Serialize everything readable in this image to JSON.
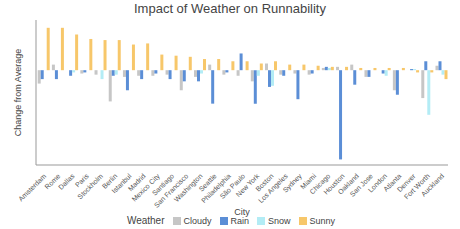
{
  "chart_data": {
    "type": "bar",
    "title": "Impact of Weather on Runnability",
    "x_label": "City",
    "y_label": "Change from Average",
    "legend_title": "Weather",
    "categories": [
      "Amsterdam",
      "Rome",
      "Dallas",
      "Paris",
      "Stockholm",
      "Berlin",
      "Istanbul",
      "Madrid",
      "Mexico City",
      "Santiago",
      "San Francisco",
      "Washington",
      "Seattle",
      "Philadelphia",
      "São Paulo",
      "New York",
      "Boston",
      "Los Angeles",
      "Sydney",
      "Miami",
      "Chicago",
      "Houston",
      "Oakland",
      "San Jose",
      "London",
      "Atlanta",
      "Denver",
      "Fort Worth",
      "Auckland"
    ],
    "series": [
      {
        "name": "Cloudy",
        "color": "#c6c6c6",
        "values": [
          -12,
          5,
          0,
          -3,
          -4,
          -28,
          -6,
          -5,
          -5,
          -4,
          -18,
          -6,
          5,
          -4,
          -5,
          -10,
          6,
          -4,
          -3,
          -4,
          2,
          3,
          5,
          -6,
          0,
          -18,
          0,
          -25,
          4
        ]
      },
      {
        "name": "Rain",
        "color": "#5b8ed6",
        "values": [
          -8,
          -8,
          -5,
          -2,
          0,
          -5,
          -18,
          -8,
          -3,
          -8,
          -10,
          -10,
          -30,
          -2,
          15,
          -30,
          -15,
          -5,
          -26,
          -3,
          3,
          -80,
          -13,
          -6,
          -3,
          -22,
          1,
          8,
          8
        ]
      },
      {
        "name": "Snow",
        "color": "#b3ecf5",
        "values": [
          0,
          0,
          -2,
          0,
          -8,
          -4,
          0,
          0,
          0,
          0,
          0,
          -3,
          0,
          0,
          0,
          -5,
          -14,
          0,
          0,
          0,
          2,
          0,
          0,
          0,
          -5,
          0,
          1,
          -40,
          -4
        ]
      },
      {
        "name": "Sunny",
        "color": "#f7c76a",
        "values": [
          38,
          38,
          32,
          28,
          27,
          27,
          23,
          24,
          14,
          13,
          12,
          10,
          10,
          8,
          8,
          6,
          8,
          5,
          5,
          4,
          3,
          3,
          2,
          2,
          2,
          2,
          -2,
          -2,
          -8
        ]
      }
    ],
    "ylim": [
      -85,
      45
    ],
    "yticks": [
      -80,
      -40,
      0,
      40
    ],
    "tick_labels": "x",
    "grid": false,
    "legend": "bottom"
  }
}
